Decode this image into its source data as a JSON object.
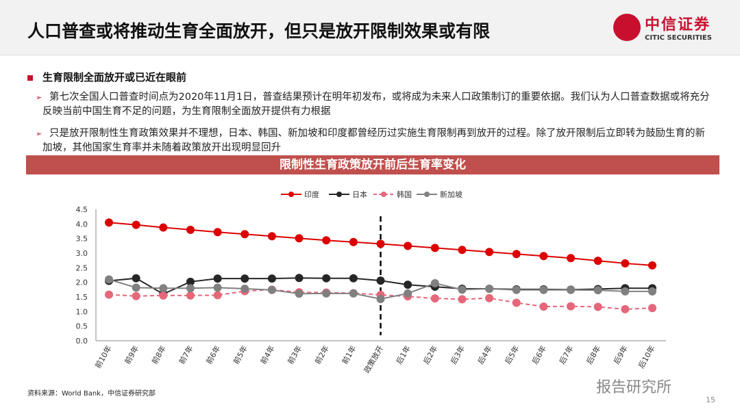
{
  "header": {
    "title": "人口普查或将推动生育全面放开，但只是放开限制效果或有限",
    "logo_cn": "中信证券",
    "logo_en": "CITIC SECURITIES"
  },
  "section": {
    "heading": "生育限制全面放开或已近在眼前",
    "bullets": [
      "第七次全国人口普查时间点为2020年11月1日，普查结果预计在明年初发布，或将成为未来人口政策制订的重要依据。我们认为人口普查数据或将充分反映当前中国生育不足的问题，为生育限制全面放开提供有力根据",
      "只是放开限制性生育政策效果并不理想，日本、韩国、新加坡和印度都曾经历过实施生育限制再到放开的过程。除了放开限制后立即转为鼓励生育的新加坡，其他国家生育率并未随着政策放开出现明显回升"
    ]
  },
  "chart_data": {
    "type": "line",
    "title": "限制性生育政策放开前后生育率变化",
    "categories": [
      "前10年",
      "前9年",
      "前8年",
      "前7年",
      "前6年",
      "前5年",
      "前4年",
      "前3年",
      "前2年",
      "前1年",
      "政策放开",
      "后1年",
      "后2年",
      "后3年",
      "后4年",
      "后5年",
      "后6年",
      "后7年",
      "后8年",
      "后9年",
      "后10年"
    ],
    "ylim": [
      0,
      4.5
    ],
    "yticks": [
      "0.0",
      "0.5",
      "1.0",
      "1.5",
      "2.0",
      "2.5",
      "3.0",
      "3.5",
      "4.0",
      "4.5"
    ],
    "legend_position": "top",
    "reference_line": "政策放开",
    "series": [
      {
        "name": "印度",
        "color": "#dc0000",
        "dashed": false,
        "values": [
          4.05,
          3.97,
          3.88,
          3.8,
          3.72,
          3.65,
          3.58,
          3.51,
          3.44,
          3.38,
          3.32,
          3.25,
          3.18,
          3.11,
          3.04,
          2.97,
          2.9,
          2.83,
          2.74,
          2.65,
          2.58
        ]
      },
      {
        "name": "日本",
        "color": "#262626",
        "dashed": false,
        "values": [
          2.05,
          2.14,
          1.6,
          2.02,
          2.13,
          2.13,
          2.13,
          2.15,
          2.14,
          2.14,
          2.06,
          1.92,
          1.85,
          1.78,
          1.78,
          1.76,
          1.76,
          1.75,
          1.77,
          1.8,
          1.8
        ]
      },
      {
        "name": "韩国",
        "color": "#e5677a",
        "dashed": true,
        "values": [
          1.58,
          1.53,
          1.55,
          1.55,
          1.56,
          1.7,
          1.75,
          1.66,
          1.65,
          1.63,
          1.57,
          1.52,
          1.45,
          1.42,
          1.46,
          1.3,
          1.17,
          1.18,
          1.16,
          1.08,
          1.12
        ]
      },
      {
        "name": "新加坡",
        "color": "#808080",
        "dashed": false,
        "values": [
          2.1,
          1.82,
          1.8,
          1.8,
          1.82,
          1.78,
          1.74,
          1.61,
          1.62,
          1.62,
          1.43,
          1.62,
          1.97,
          1.75,
          1.78,
          1.74,
          1.74,
          1.74,
          1.73,
          1.69,
          1.69
        ]
      }
    ]
  },
  "footer": {
    "source": "资料来源：World Bank，中信证券研究部",
    "watermark": "报告研究所",
    "page": "15"
  }
}
